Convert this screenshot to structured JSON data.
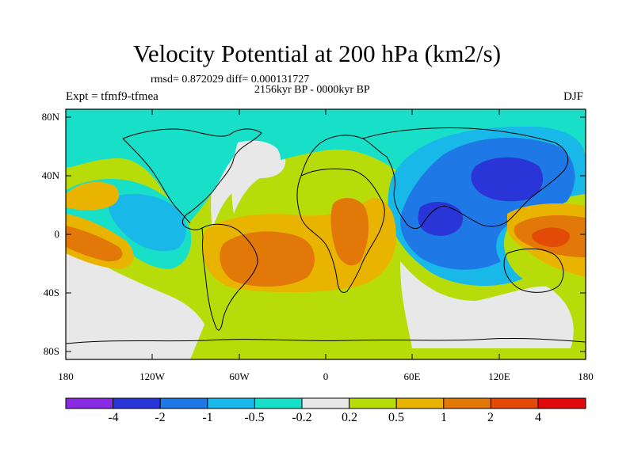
{
  "title": "Velocity Potential at 200 hPa (km2/s)",
  "stats_line": "rmsd= 0.872029 diff= 0.000131727",
  "period_line": "2156kyr BP - 0000kyr BP",
  "experiment": "Expt = tfmf9-tfmea",
  "season": "DJF",
  "map": {
    "projection": "cylindrical equidistant",
    "lon_range": [
      -180,
      180
    ],
    "lat_range": [
      -90,
      90
    ],
    "lat_labels": [
      "80N",
      "40N",
      "0",
      "40S",
      "80S"
    ],
    "lon_labels": [
      "180",
      "120W",
      "60W",
      "0",
      "60E",
      "120E",
      "180"
    ],
    "field": "velocity potential anomaly (filled contours)"
  },
  "colorbar": {
    "labels": [
      "-4",
      "-2",
      "-1",
      "-0.5",
      "-0.2",
      "0.2",
      "0.5",
      "1",
      "2",
      "4"
    ],
    "colors": [
      "#8a2be2",
      "#2a35d8",
      "#1e78e6",
      "#18b8e8",
      "#18e0c8",
      "#e8e8e8",
      "#b8dc0a",
      "#e8b400",
      "#e27808",
      "#e24a06",
      "#e00a0a"
    ]
  }
}
